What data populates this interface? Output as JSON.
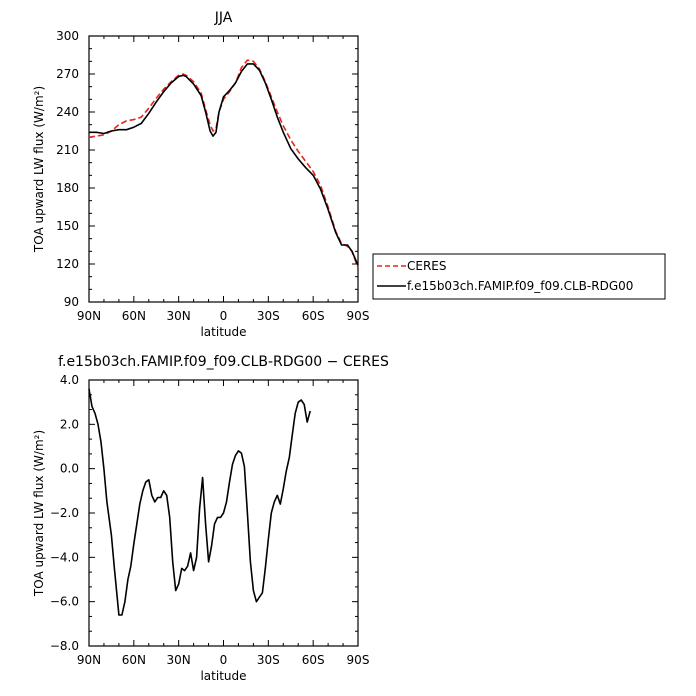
{
  "chart_data": [
    {
      "type": "line",
      "title": "JJA",
      "xlabel": "latitude",
      "ylabel": "TOA upward LW flux (W/m²)",
      "xlim": [
        90,
        -90
      ],
      "ylim": [
        90,
        300
      ],
      "x_ticks": [
        90,
        60,
        30,
        0,
        -30,
        -60,
        -90
      ],
      "x_tick_labels": [
        "90N",
        "60N",
        "30N",
        "0",
        "30S",
        "60S",
        "90S"
      ],
      "y_ticks": [
        90,
        120,
        150,
        180,
        210,
        240,
        270,
        300
      ],
      "y_tick_labels": [
        "90",
        "120",
        "150",
        "180",
        "210",
        "240",
        "270",
        "300"
      ],
      "grid": false,
      "legend_position": "right",
      "series": [
        {
          "name": "CERES",
          "color": "#e8241c",
          "dash": "dashed",
          "points": [
            [
              90,
              220
            ],
            [
              85,
              221
            ],
            [
              80,
              222
            ],
            [
              75,
              225
            ],
            [
              70,
              230
            ],
            [
              65,
              233
            ],
            [
              60,
              234
            ],
            [
              55,
              236
            ],
            [
              50,
              243
            ],
            [
              45,
              251
            ],
            [
              40,
              258
            ],
            [
              35,
              264
            ],
            [
              30,
              269
            ],
            [
              27,
              270
            ],
            [
              25,
              269
            ],
            [
              20,
              264
            ],
            [
              15,
              255
            ],
            [
              12,
              242
            ],
            [
              9,
              230
            ],
            [
              7,
              225
            ],
            [
              5,
              227
            ],
            [
              3,
              240
            ],
            [
              0,
              250
            ],
            [
              -4,
              256
            ],
            [
              -8,
              263
            ],
            [
              -12,
              275
            ],
            [
              -16,
              281
            ],
            [
              -20,
              280
            ],
            [
              -24,
              274
            ],
            [
              -28,
              264
            ],
            [
              -32,
              252
            ],
            [
              -36,
              240
            ],
            [
              -40,
              229
            ],
            [
              -45,
              218
            ],
            [
              -50,
              209
            ],
            [
              -55,
              201
            ],
            [
              -60,
              193
            ],
            [
              -65,
              182
            ],
            [
              -70,
              165
            ],
            [
              -75,
              146
            ],
            [
              -79,
              136
            ],
            [
              -83,
              134
            ],
            [
              -86,
              130
            ],
            [
              -90,
              117
            ]
          ]
        },
        {
          "name": "f.e15b03ch.FAMIP.f09_f09.CLB-RDG00",
          "color": "#000000",
          "dash": "solid",
          "points": [
            [
              90,
              224
            ],
            [
              85,
              224
            ],
            [
              80,
              223
            ],
            [
              75,
              225
            ],
            [
              70,
              226
            ],
            [
              65,
              226
            ],
            [
              60,
              228
            ],
            [
              55,
              231
            ],
            [
              50,
              239
            ],
            [
              45,
              248
            ],
            [
              40,
              256
            ],
            [
              35,
              263
            ],
            [
              30,
              268
            ],
            [
              27,
              269
            ],
            [
              25,
              268
            ],
            [
              20,
              262
            ],
            [
              15,
              253
            ],
            [
              12,
              240
            ],
            [
              9,
              225
            ],
            [
              7,
              221
            ],
            [
              5,
              224
            ],
            [
              3,
              240
            ],
            [
              0,
              252
            ],
            [
              -4,
              257
            ],
            [
              -8,
              263
            ],
            [
              -12,
              272
            ],
            [
              -16,
              278
            ],
            [
              -20,
              278
            ],
            [
              -24,
              273
            ],
            [
              -28,
              263
            ],
            [
              -32,
              250
            ],
            [
              -36,
              236
            ],
            [
              -40,
              224
            ],
            [
              -45,
              211
            ],
            [
              -50,
              203
            ],
            [
              -55,
              196
            ],
            [
              -60,
              190
            ],
            [
              -65,
              179
            ],
            [
              -70,
              163
            ],
            [
              -75,
              145
            ],
            [
              -79,
              135
            ],
            [
              -83,
              135
            ],
            [
              -86,
              130
            ],
            [
              -90,
              119
            ]
          ]
        }
      ]
    },
    {
      "type": "line",
      "title": "f.e15b03ch.FAMIP.f09_f09.CLB-RDG00 − CERES",
      "xlabel": "latitude",
      "ylabel": "TOA upward LW flux (W/m²)",
      "xlim": [
        90,
        -90
      ],
      "ylim": [
        -8,
        4
      ],
      "x_ticks": [
        90,
        60,
        30,
        0,
        -30,
        -60,
        -90
      ],
      "x_tick_labels": [
        "90N",
        "60N",
        "30N",
        "0",
        "30S",
        "60S",
        "90S"
      ],
      "y_ticks": [
        -8,
        -6,
        -4,
        -2,
        0,
        2,
        4
      ],
      "y_tick_labels": [
        "−8.0",
        "−6.0",
        "−4.0",
        "−2.0",
        "0.0",
        "2.0",
        "4.0"
      ],
      "grid": false,
      "series": [
        {
          "name": "",
          "color": "#000000",
          "dash": "solid",
          "points": [
            [
              90,
              3.6
            ],
            [
              88,
              2.8
            ],
            [
              86,
              2.5
            ],
            [
              84,
              2.0
            ],
            [
              82,
              1.2
            ],
            [
              80,
              0.0
            ],
            [
              78,
              -1.5
            ],
            [
              75,
              -3.0
            ],
            [
              73,
              -4.5
            ],
            [
              70,
              -6.6
            ],
            [
              68,
              -6.6
            ],
            [
              66,
              -6.0
            ],
            [
              64,
              -5.0
            ],
            [
              62,
              -4.4
            ],
            [
              60,
              -3.4
            ],
            [
              58,
              -2.5
            ],
            [
              56,
              -1.6
            ],
            [
              54,
              -1.0
            ],
            [
              52,
              -0.6
            ],
            [
              50,
              -0.5
            ],
            [
              48,
              -1.2
            ],
            [
              46,
              -1.5
            ],
            [
              44,
              -1.3
            ],
            [
              42,
              -1.3
            ],
            [
              40,
              -1.0
            ],
            [
              38,
              -1.2
            ],
            [
              36,
              -2.2
            ],
            [
              34,
              -4.2
            ],
            [
              32,
              -5.5
            ],
            [
              30,
              -5.2
            ],
            [
              28,
              -4.5
            ],
            [
              26,
              -4.6
            ],
            [
              24,
              -4.4
            ],
            [
              22,
              -3.8
            ],
            [
              20,
              -4.6
            ],
            [
              18,
              -4.0
            ],
            [
              16,
              -1.8
            ],
            [
              14,
              -0.4
            ],
            [
              12,
              -2.5
            ],
            [
              10,
              -4.2
            ],
            [
              8,
              -3.5
            ],
            [
              6,
              -2.5
            ],
            [
              4,
              -2.2
            ],
            [
              2,
              -2.2
            ],
            [
              0,
              -2.0
            ],
            [
              -2,
              -1.5
            ],
            [
              -4,
              -0.6
            ],
            [
              -6,
              0.2
            ],
            [
              -8,
              0.6
            ],
            [
              -10,
              0.8
            ],
            [
              -12,
              0.7
            ],
            [
              -14,
              0.1
            ],
            [
              -16,
              -2.0
            ],
            [
              -18,
              -4.2
            ],
            [
              -20,
              -5.5
            ],
            [
              -22,
              -6.0
            ],
            [
              -24,
              -5.8
            ],
            [
              -26,
              -5.6
            ],
            [
              -28,
              -4.5
            ],
            [
              -30,
              -3.2
            ],
            [
              -32,
              -2.0
            ],
            [
              -34,
              -1.5
            ],
            [
              -36,
              -1.2
            ],
            [
              -38,
              -1.6
            ],
            [
              -40,
              -0.9
            ],
            [
              -42,
              -0.1
            ],
            [
              -44,
              0.5
            ],
            [
              -46,
              1.5
            ],
            [
              -48,
              2.5
            ],
            [
              -50,
              3.0
            ],
            [
              -52,
              3.1
            ],
            [
              -54,
              2.9
            ],
            [
              -56,
              2.1
            ],
            [
              -58,
              2.6
            ]
          ]
        }
      ]
    }
  ]
}
